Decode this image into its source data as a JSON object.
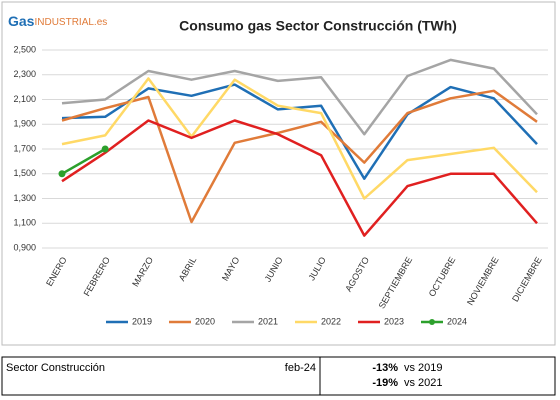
{
  "logo": {
    "brand": "Gas",
    "suffix": "INDUSTRIAL.es"
  },
  "chart_data": {
    "type": "line",
    "title": "Consumo gas Sector Construcción (TWh)",
    "categories": [
      "ENERO",
      "FEBRERO",
      "MARZO",
      "ABRIL",
      "MAYO",
      "JUNIO",
      "JULIO",
      "AGOSTO",
      "SEPTIEMBRE",
      "OCTUBRE",
      "NOVIEMBRE",
      "DICIEMBRE"
    ],
    "series": [
      {
        "name": "2019",
        "color": "#1f6fb5",
        "values": [
          1.95,
          1.96,
          2.19,
          2.13,
          2.22,
          2.02,
          2.05,
          1.46,
          1.98,
          2.2,
          2.11,
          1.74
        ]
      },
      {
        "name": "2020",
        "color": "#e07b39",
        "values": [
          1.93,
          2.03,
          2.12,
          1.11,
          1.75,
          1.83,
          1.92,
          1.59,
          1.99,
          2.11,
          2.17,
          1.92
        ]
      },
      {
        "name": "2021",
        "color": "#a5a5a5",
        "values": [
          2.07,
          2.1,
          2.33,
          2.26,
          2.33,
          2.25,
          2.28,
          1.82,
          2.29,
          2.42,
          2.35,
          1.98
        ]
      },
      {
        "name": "2022",
        "color": "#ffd966",
        "values": [
          1.74,
          1.81,
          2.27,
          1.8,
          2.26,
          2.05,
          1.99,
          1.3,
          1.61,
          1.66,
          1.71,
          1.35
        ]
      },
      {
        "name": "2023",
        "color": "#e02020",
        "values": [
          1.44,
          1.67,
          1.93,
          1.79,
          1.93,
          1.82,
          1.65,
          1.0,
          1.4,
          1.5,
          1.5,
          1.1
        ]
      },
      {
        "name": "2024",
        "color": "#2ca02c",
        "markers": true,
        "values": [
          1.5,
          1.7,
          null,
          null,
          null,
          null,
          null,
          null,
          null,
          null,
          null,
          null
        ]
      }
    ],
    "ylim": [
      0.9,
      2.5
    ],
    "yticks": [
      {
        "value": 0.9,
        "label": "0,900"
      },
      {
        "value": 1.1,
        "label": "1,100"
      },
      {
        "value": 1.3,
        "label": "1,300"
      },
      {
        "value": 1.5,
        "label": "1,500"
      },
      {
        "value": 1.7,
        "label": "1,700"
      },
      {
        "value": 1.9,
        "label": "1,900"
      },
      {
        "value": 2.1,
        "label": "2,100"
      },
      {
        "value": 2.3,
        "label": "2,300"
      },
      {
        "value": 2.5,
        "label": "2,500"
      }
    ],
    "grid": true,
    "legend": "bottom"
  },
  "table": {
    "sector": "Sector Construcción",
    "period": "feb-24",
    "comparisons": [
      {
        "change": "-13%",
        "label": "vs 2019"
      },
      {
        "change": "-19%",
        "label": "vs 2021"
      }
    ]
  }
}
